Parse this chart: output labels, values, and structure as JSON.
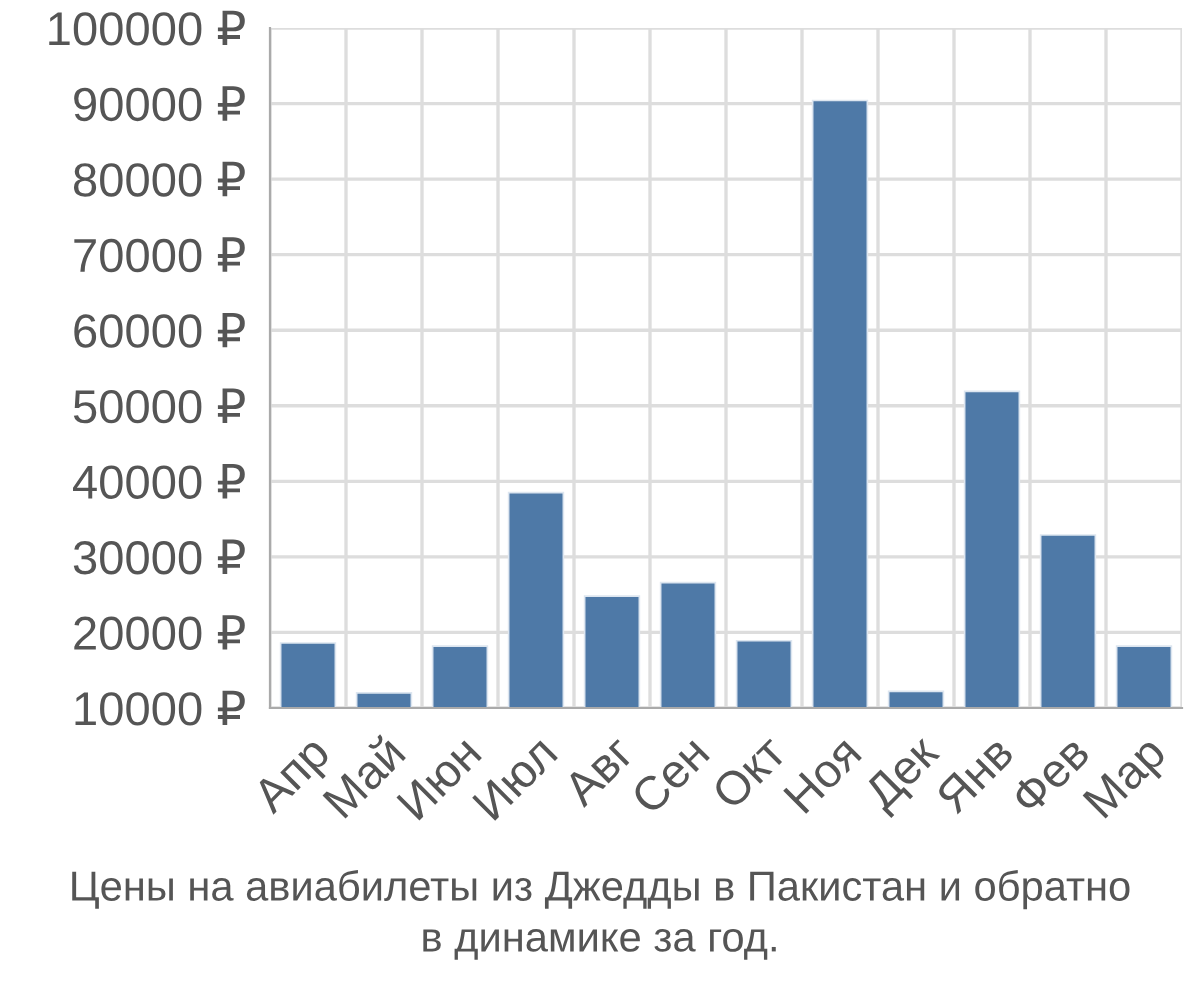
{
  "chart_data": {
    "type": "bar",
    "categories": [
      "Апр",
      "Май",
      "Июн",
      "Июл",
      "Авг",
      "Сен",
      "Окт",
      "Ноя",
      "Дек",
      "Янв",
      "Фев",
      "Мар"
    ],
    "values": [
      18600,
      12000,
      18200,
      38500,
      24800,
      26600,
      18900,
      90400,
      12200,
      51900,
      32900,
      18200
    ],
    "color": "#4e79a7",
    "ylim": [
      10000,
      100000
    ],
    "yticks": [
      {
        "value": 10000,
        "label": "10000 ₽"
      },
      {
        "value": 20000,
        "label": "20000 ₽"
      },
      {
        "value": 30000,
        "label": "30000 ₽"
      },
      {
        "value": 40000,
        "label": "40000 ₽"
      },
      {
        "value": 50000,
        "label": "50000 ₽"
      },
      {
        "value": 60000,
        "label": "60000 ₽"
      },
      {
        "value": 70000,
        "label": "70000 ₽"
      },
      {
        "value": 80000,
        "label": "80000 ₽"
      },
      {
        "value": 90000,
        "label": "90000 ₽"
      },
      {
        "value": 100000,
        "label": "100000 ₽"
      }
    ],
    "grid": true,
    "annotations": [
      "Цены на авиабилеты из Джедды в Пакистан и обратно\nв динамике за год."
    ]
  }
}
